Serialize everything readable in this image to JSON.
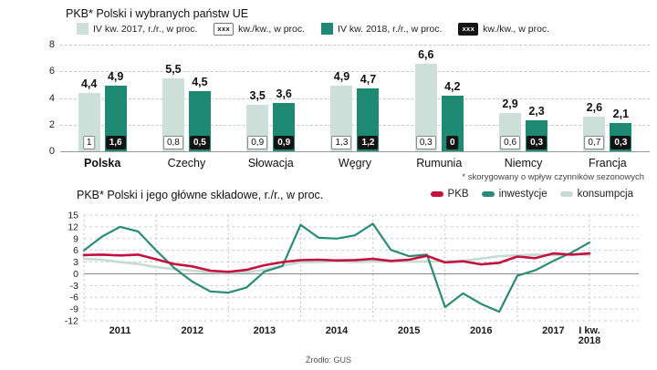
{
  "top_chart": {
    "title": "PKB* Polski i wybranych państw UE",
    "legend": [
      {
        "label": "IV kw. 2017, r./r., w proc.",
        "swatch": "light-square"
      },
      {
        "label": "kw./kw., w proc.",
        "swatch": "light-box"
      },
      {
        "label": "IV kw. 2018, r./r., w proc.",
        "swatch": "dark-square"
      },
      {
        "label": "kw./kw., w proc.",
        "swatch": "dark-box"
      }
    ],
    "box_sample": "xxx",
    "footnote": "* skorygowany o wpływ czynników sezonowych"
  },
  "bottom_chart": {
    "title": "PKB* Polski i jego główne składowe, r./r., w proc.",
    "legend": [
      "PKB",
      "inwestycje",
      "konsumpcja"
    ]
  },
  "source": "Źródło: GUS",
  "colors": {
    "light_teal": "#ccdfd8",
    "dark_teal": "#1f8a74",
    "red": "#c41140",
    "pale_green": "#c5dcd3",
    "black_box": "#141414"
  },
  "chart_data": [
    {
      "type": "bar",
      "title": "PKB* Polski i wybranych państw UE",
      "categories": [
        "Polska",
        "Czechy",
        "Słowacja",
        "Węgry",
        "Rumunia",
        "Niemcy",
        "Francja"
      ],
      "series": [
        {
          "name": "IV kw. 2017, r./r., w proc.",
          "color": "#ccdfd8",
          "values": [
            4.4,
            5.5,
            3.5,
            4.9,
            6.6,
            2.9,
            2.6
          ]
        },
        {
          "name": "IV kw. 2018, r./r., w proc.",
          "color": "#1f8a74",
          "values": [
            4.9,
            4.5,
            3.6,
            4.7,
            4.2,
            2.3,
            2.1
          ]
        }
      ],
      "qoq_2017": [
        1,
        0.8,
        0.9,
        1.3,
        0.3,
        0.6,
        0.7
      ],
      "qoq_2018": [
        1.6,
        0.5,
        0.9,
        1.2,
        0,
        0.3,
        0.3
      ],
      "ylim": [
        0,
        8
      ],
      "yticks": [
        0,
        2,
        4,
        6,
        8
      ],
      "grid": "dashed-horizontal"
    },
    {
      "type": "line",
      "title": "PKB* Polski i jego główne składowe, r./r., w proc.",
      "x_labels": [
        "2011",
        "2012",
        "2013",
        "2014",
        "2015",
        "2016",
        "2017"
      ],
      "final_label": [
        "I kw.",
        "2018"
      ],
      "quarters_per_year": 4,
      "ylim": [
        -12,
        15
      ],
      "yticks": [
        15,
        12,
        9,
        6,
        3,
        0,
        -3,
        -6,
        -9,
        -12
      ],
      "legend_position": "top-right",
      "series": [
        {
          "name": "PKB",
          "color": "#c41140",
          "values": [
            4.8,
            4.9,
            4.7,
            4.9,
            3.7,
            2.5,
            1.9,
            0.8,
            0.5,
            1.0,
            2.2,
            3.0,
            3.5,
            3.6,
            3.4,
            3.5,
            3.8,
            3.3,
            3.6,
            4.6,
            2.9,
            3.2,
            2.4,
            2.8,
            4.4,
            4.0,
            5.2,
            4.9,
            5.2
          ]
        },
        {
          "name": "inwestycje",
          "color": "#2a8c74",
          "values": [
            6.0,
            9.5,
            12.0,
            10.8,
            6.0,
            1.5,
            -2.0,
            -4.5,
            -4.8,
            -3.5,
            0.6,
            2.0,
            12.5,
            9.2,
            9.0,
            9.8,
            12.8,
            6.1,
            4.5,
            4.9,
            -8.5,
            -5.0,
            -7.7,
            -9.7,
            -0.5,
            0.9,
            3.3,
            5.4,
            8.0
          ]
        },
        {
          "name": "konsumpcja",
          "color": "#c5dcd3",
          "values": [
            3.8,
            3.6,
            3.0,
            2.5,
            1.7,
            1.2,
            0.8,
            0.4,
            0.3,
            0.4,
            1.0,
            2.1,
            2.9,
            3.0,
            3.2,
            3.0,
            3.1,
            3.1,
            3.1,
            3.1,
            3.2,
            3.3,
            3.9,
            4.5,
            4.7,
            4.9,
            4.8,
            5.0,
            4.8
          ]
        }
      ]
    }
  ]
}
